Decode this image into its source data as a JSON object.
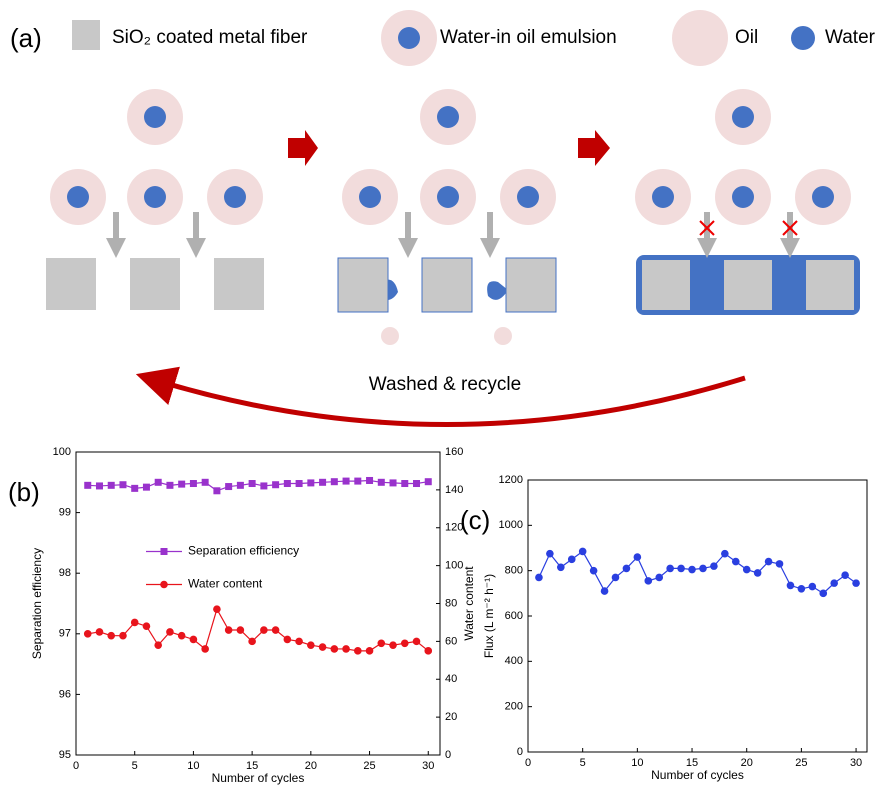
{
  "diagram": {
    "label": "(a)",
    "legend": [
      "SiO₂ coated metal fiber",
      "Water-in oil emulsion",
      "Oil",
      "Water"
    ],
    "arrow_label": "Washed & recycle"
  },
  "chart_data": [
    {
      "type": "line",
      "panel_label": "(b)",
      "xlabel": "Number of cycles",
      "ylabel": "Separation efficiency",
      "y2label": "Water content",
      "x": [
        1,
        2,
        3,
        4,
        5,
        6,
        7,
        8,
        9,
        10,
        11,
        12,
        13,
        14,
        15,
        16,
        17,
        18,
        19,
        20,
        21,
        22,
        23,
        24,
        25,
        26,
        27,
        28,
        29,
        30
      ],
      "xlim": [
        0,
        31
      ],
      "xticks": [
        0,
        5,
        10,
        15,
        20,
        25,
        30
      ],
      "ylim": [
        95,
        100
      ],
      "yticks": [
        95,
        96,
        97,
        98,
        99,
        100
      ],
      "y2lim": [
        0,
        160
      ],
      "y2ticks": [
        0,
        20,
        40,
        60,
        80,
        100,
        120,
        140,
        160
      ],
      "legend": "center left",
      "series": [
        {
          "name": "Separation efficiency",
          "color": "#9932cc",
          "marker": "square",
          "values": [
            99.45,
            99.44,
            99.45,
            99.46,
            99.4,
            99.42,
            99.5,
            99.45,
            99.47,
            99.48,
            99.5,
            99.36,
            99.43,
            99.45,
            99.48,
            99.44,
            99.46,
            99.48,
            99.48,
            99.49,
            99.5,
            99.51,
            99.52,
            99.52,
            99.53,
            99.5,
            99.49,
            99.48,
            99.48,
            99.51
          ]
        },
        {
          "name": "Water content",
          "color": "#e8141c",
          "marker": "circle",
          "axis": "y2",
          "values": [
            64,
            65,
            63,
            63,
            70,
            68,
            58,
            65,
            63,
            61,
            56,
            77,
            66,
            66,
            60,
            66,
            66,
            61,
            60,
            58,
            57,
            56,
            56,
            55,
            55,
            59,
            58,
            59,
            60,
            55
          ]
        }
      ]
    },
    {
      "type": "line",
      "panel_label": "(c)",
      "xlabel": "Number of cycles",
      "ylabel": "Flux (L m⁻² h⁻¹)",
      "x": [
        1,
        2,
        3,
        4,
        5,
        6,
        7,
        8,
        9,
        10,
        11,
        12,
        13,
        14,
        15,
        16,
        17,
        18,
        19,
        20,
        21,
        22,
        23,
        24,
        25,
        26,
        27,
        28,
        29,
        30
      ],
      "xlim": [
        0,
        31
      ],
      "xticks": [
        0,
        5,
        10,
        15,
        20,
        25,
        30
      ],
      "ylim": [
        0,
        1200
      ],
      "yticks": [
        0,
        200,
        400,
        600,
        800,
        1000,
        1200
      ],
      "series": [
        {
          "color": "#2a3fe0",
          "marker": "circle",
          "values": [
            770,
            875,
            815,
            850,
            885,
            800,
            710,
            770,
            810,
            860,
            755,
            770,
            810,
            810,
            805,
            810,
            820,
            875,
            840,
            805,
            790,
            840,
            830,
            735,
            720,
            730,
            700,
            745,
            780,
            745
          ]
        }
      ]
    }
  ]
}
